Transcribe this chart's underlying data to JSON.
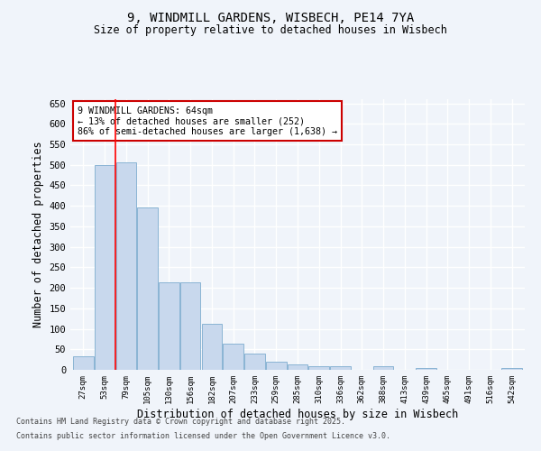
{
  "title1": "9, WINDMILL GARDENS, WISBECH, PE14 7YA",
  "title2": "Size of property relative to detached houses in Wisbech",
  "xlabel": "Distribution of detached houses by size in Wisbech",
  "ylabel": "Number of detached properties",
  "categories": [
    "27sqm",
    "53sqm",
    "79sqm",
    "105sqm",
    "130sqm",
    "156sqm",
    "182sqm",
    "207sqm",
    "233sqm",
    "259sqm",
    "285sqm",
    "310sqm",
    "336sqm",
    "362sqm",
    "388sqm",
    "413sqm",
    "439sqm",
    "465sqm",
    "491sqm",
    "516sqm",
    "542sqm"
  ],
  "values": [
    32,
    500,
    507,
    395,
    214,
    214,
    112,
    64,
    40,
    20,
    13,
    9,
    9,
    0,
    9,
    0,
    5,
    0,
    0,
    0,
    4
  ],
  "bar_color": "#c8d8ed",
  "bar_edgecolor": "#8ab4d4",
  "background_color": "#f0f4fa",
  "grid_color": "#ffffff",
  "annotation_title": "9 WINDMILL GARDENS: 64sqm",
  "annotation_line1": "← 13% of detached houses are smaller (252)",
  "annotation_line2": "86% of semi-detached houses are larger (1,638) →",
  "annotation_box_facecolor": "#ffffff",
  "annotation_box_edgecolor": "#cc0000",
  "footnote1": "Contains HM Land Registry data © Crown copyright and database right 2025.",
  "footnote2": "Contains public sector information licensed under the Open Government Licence v3.0.",
  "ylim": [
    0,
    660
  ],
  "yticks": [
    0,
    50,
    100,
    150,
    200,
    250,
    300,
    350,
    400,
    450,
    500,
    550,
    600,
    650
  ]
}
